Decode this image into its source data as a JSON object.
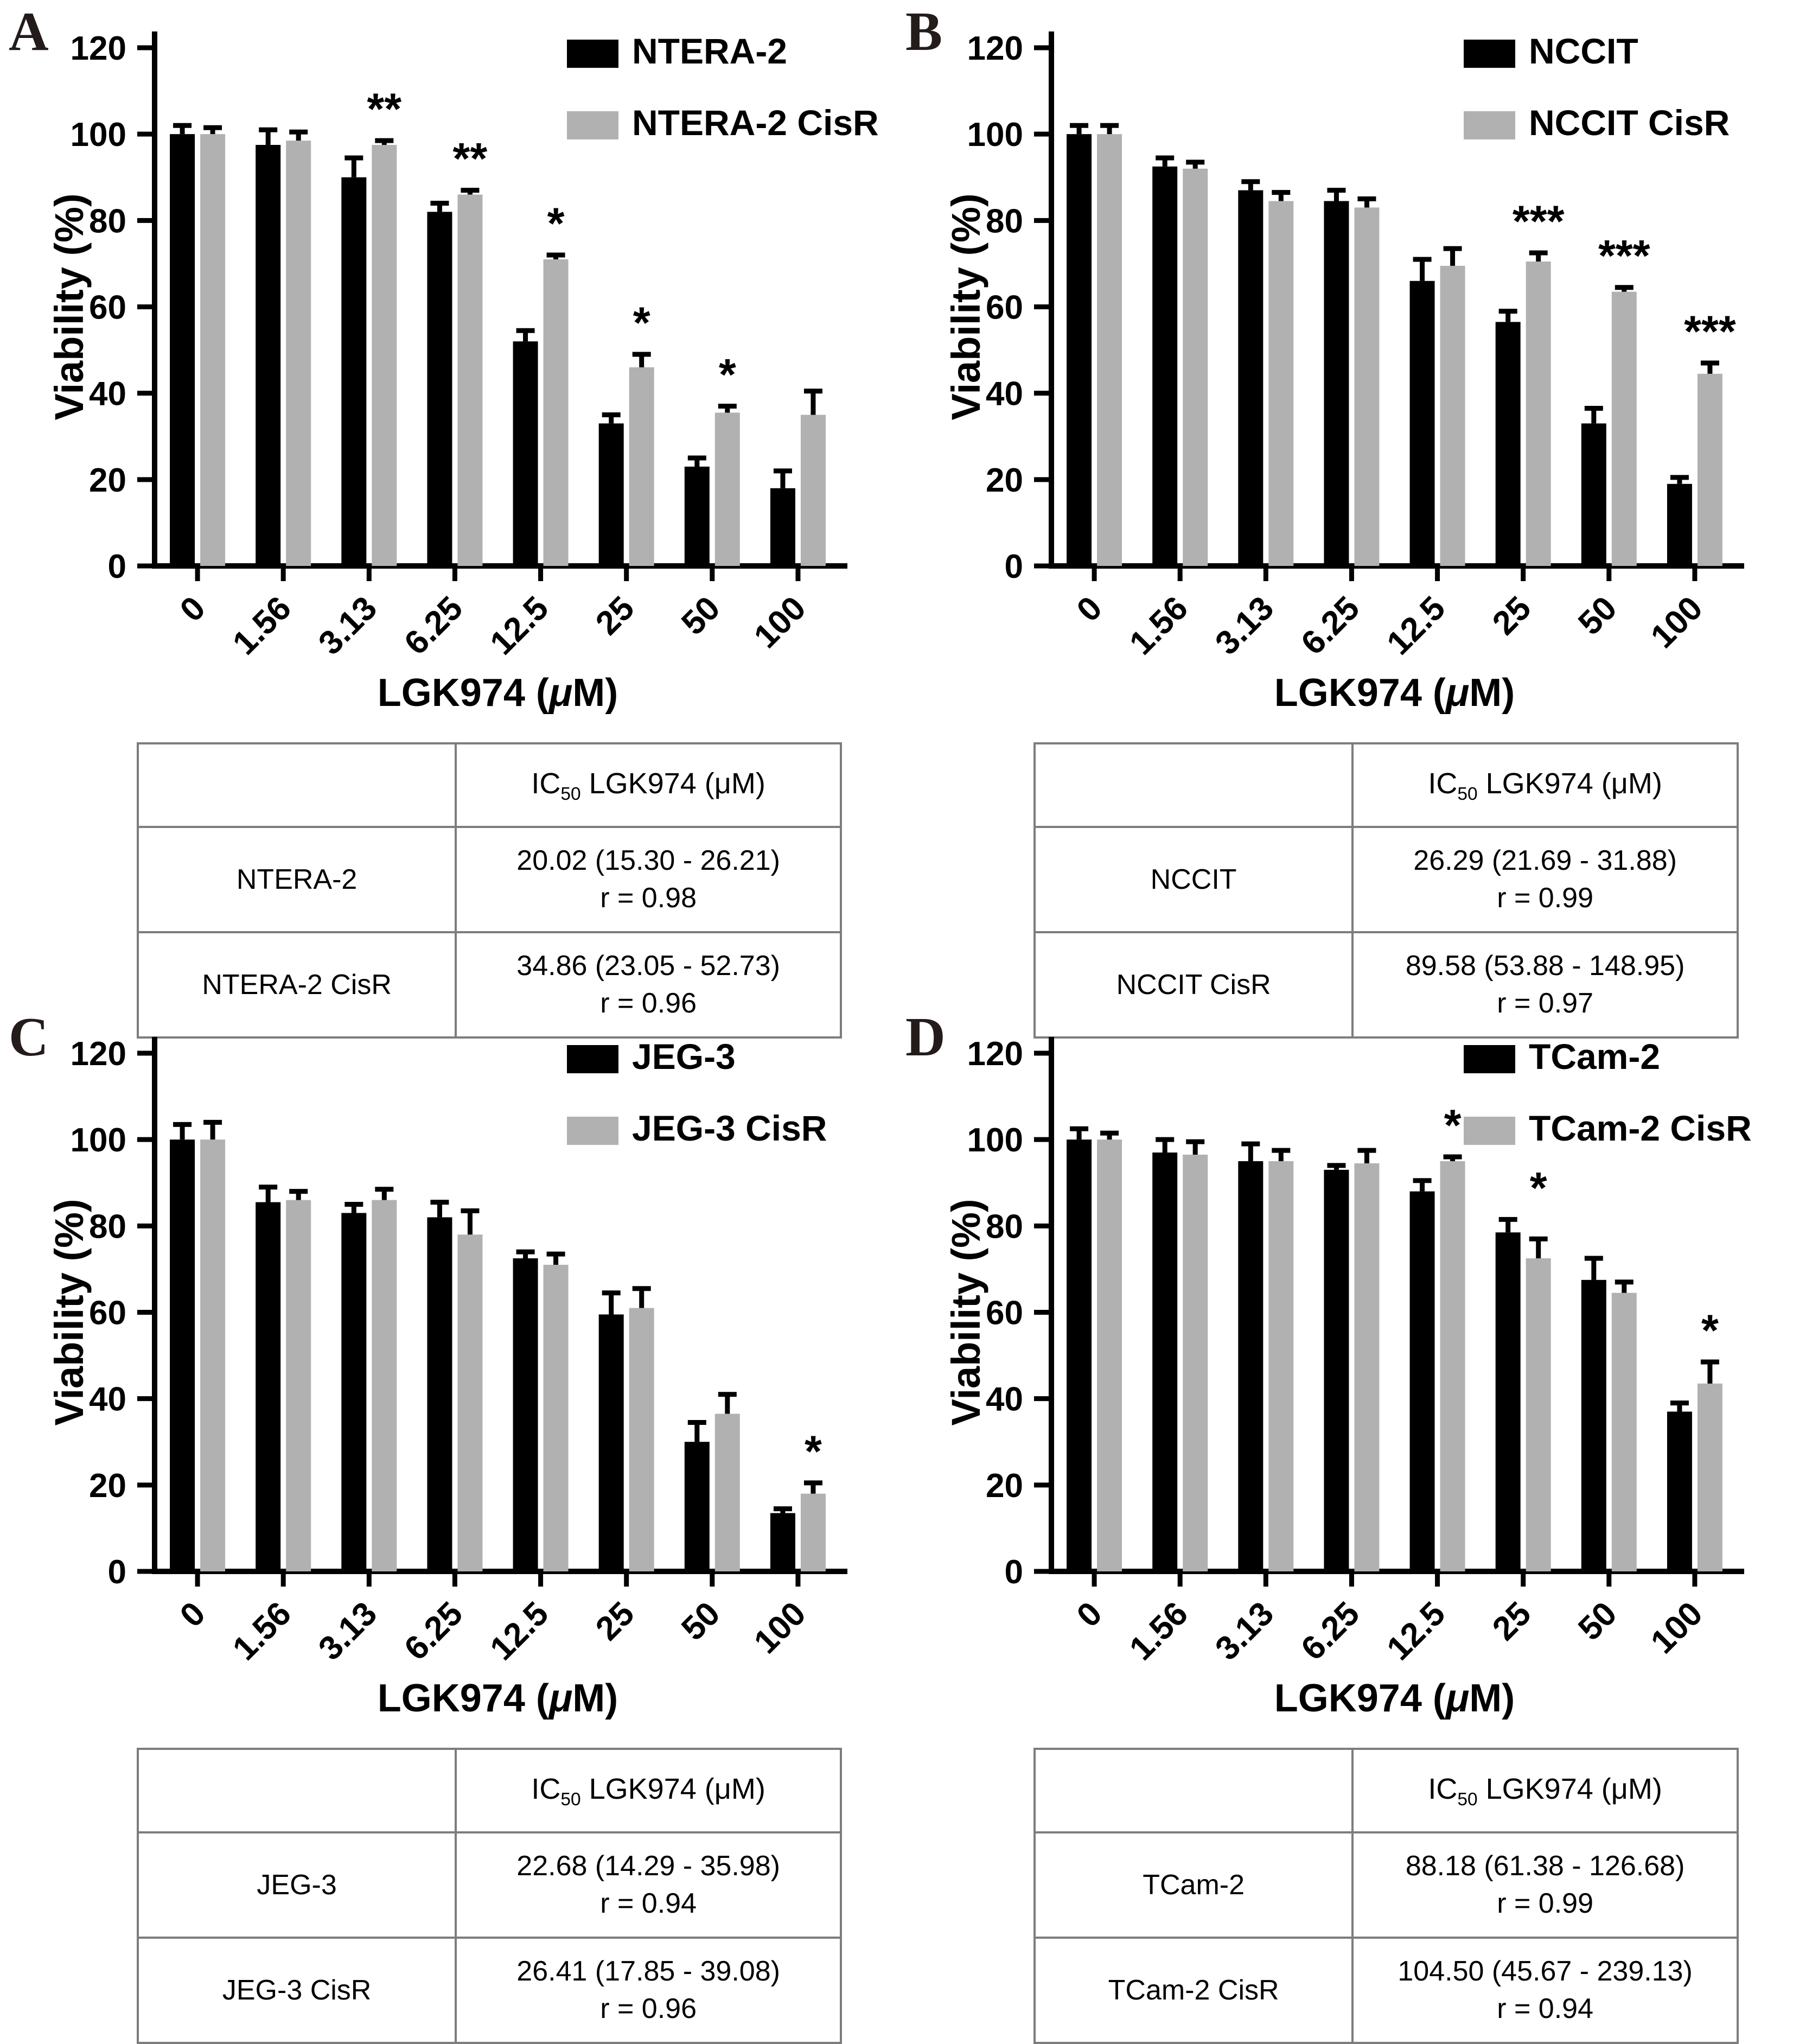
{
  "figure_colors": {
    "bar_black": "#000000",
    "bar_gray": "#b1b1b1",
    "error_bar": "#000000",
    "table_border": "#7d7d7d",
    "panel_letter": "#241b1b"
  },
  "chart_data": [
    {
      "type": "bar",
      "categories": [
        "0",
        "1.56",
        "3.13",
        "6.25",
        "12.5",
        "25",
        "50",
        "100"
      ],
      "xlabel": "LGK974 (μM)",
      "ylabel": "Viability (%)",
      "ylim": [
        0,
        120
      ],
      "yticks": [
        0,
        20,
        40,
        60,
        80,
        100,
        120
      ],
      "grid": false,
      "legend_position": "top-right",
      "series": [
        {
          "name": "NTERA-2",
          "color": "#000000",
          "values": [
            100,
            97.5,
            90,
            82,
            52,
            33,
            23,
            18
          ],
          "errors": [
            2,
            3.5,
            4.5,
            2,
            2.5,
            2,
            2,
            4
          ]
        },
        {
          "name": "NTERA-2 CisR",
          "color": "#b1b1b1",
          "values": [
            100,
            98.5,
            97.5,
            86,
            71,
            46,
            35.5,
            35
          ],
          "errors": [
            1.5,
            2,
            1,
            1,
            1,
            3,
            1.5,
            5.5
          ]
        }
      ],
      "significance": [
        {
          "index": 2,
          "label": "**"
        },
        {
          "index": 3,
          "label": "**"
        },
        {
          "index": 4,
          "label": "*"
        },
        {
          "index": 5,
          "label": "*"
        },
        {
          "index": 6,
          "label": "*"
        }
      ]
    },
    {
      "type": "bar",
      "categories": [
        "0",
        "1.56",
        "3.13",
        "6.25",
        "12.5",
        "25",
        "50",
        "100"
      ],
      "xlabel": "LGK974 (μM)",
      "ylabel": "Viability (%)",
      "ylim": [
        0,
        120
      ],
      "yticks": [
        0,
        20,
        40,
        60,
        80,
        100,
        120
      ],
      "grid": false,
      "legend_position": "top-right",
      "series": [
        {
          "name": "NCCIT",
          "color": "#000000",
          "values": [
            100,
            92.5,
            87,
            84.5,
            66,
            56.5,
            33,
            19
          ],
          "errors": [
            2,
            2,
            2,
            2.5,
            5,
            2.5,
            3.5,
            1.5
          ]
        },
        {
          "name": "NCCIT CisR",
          "color": "#b1b1b1",
          "values": [
            100,
            92,
            84.5,
            83,
            69.5,
            70.5,
            63.5,
            44.5
          ],
          "errors": [
            2,
            1.5,
            2,
            2,
            4,
            2,
            1,
            2.5
          ]
        }
      ],
      "significance": [
        {
          "index": 5,
          "label": "***"
        },
        {
          "index": 6,
          "label": "***"
        },
        {
          "index": 7,
          "label": "***"
        }
      ]
    },
    {
      "type": "bar",
      "categories": [
        "0",
        "1.56",
        "3.13",
        "6.25",
        "12.5",
        "25",
        "50",
        "100"
      ],
      "xlabel": "LGK974 (μM)",
      "ylabel": "Viability (%)",
      "ylim": [
        0,
        120
      ],
      "yticks": [
        0,
        20,
        40,
        60,
        80,
        100,
        120
      ],
      "grid": false,
      "legend_position": "top-right",
      "series": [
        {
          "name": "JEG-3",
          "color": "#000000",
          "values": [
            100,
            85.5,
            83,
            82,
            72.5,
            59.5,
            30,
            13.5
          ],
          "errors": [
            3.5,
            3.5,
            2,
            3.5,
            1.5,
            5,
            4.5,
            1
          ]
        },
        {
          "name": "JEG-3 CisR",
          "color": "#b1b1b1",
          "values": [
            100,
            86,
            86,
            78,
            71,
            61,
            36.5,
            18
          ],
          "errors": [
            4,
            2,
            2.5,
            5.5,
            2.5,
            4.5,
            4.5,
            2.5
          ]
        }
      ],
      "significance": [
        {
          "index": 7,
          "label": "*"
        }
      ]
    },
    {
      "type": "bar",
      "categories": [
        "0",
        "1.56",
        "3.13",
        "6.25",
        "12.5",
        "25",
        "50",
        "100"
      ],
      "xlabel": "LGK974 (μM)",
      "ylabel": "Viability (%)",
      "ylim": [
        0,
        120
      ],
      "yticks": [
        0,
        20,
        40,
        60,
        80,
        100,
        120
      ],
      "grid": false,
      "legend_position": "top-right",
      "series": [
        {
          "name": "TCam-2",
          "color": "#000000",
          "values": [
            100,
            97,
            95,
            93,
            88,
            78.5,
            67.5,
            37
          ],
          "errors": [
            2.5,
            3,
            4,
            1,
            2.5,
            3,
            5,
            2
          ]
        },
        {
          "name": "TCam-2 CisR",
          "color": "#b1b1b1",
          "values": [
            100,
            96.5,
            95,
            94.5,
            95,
            72.5,
            64.5,
            43.5
          ],
          "errors": [
            1.5,
            3,
            2.5,
            3,
            1,
            4.5,
            2.5,
            5
          ]
        }
      ],
      "significance": [
        {
          "index": 4,
          "label": "*"
        },
        {
          "index": 5,
          "label": "*"
        },
        {
          "index": 7,
          "label": "*"
        }
      ]
    }
  ],
  "panels": [
    {
      "label": "A",
      "table": {
        "header": {
          "prefix": "IC",
          "sub": "50",
          "suffix": " LGK974 (μM)"
        },
        "rows": [
          {
            "cell": "NTERA-2",
            "ic50": "20.02 (15.30 - 26.21)",
            "r": "r = 0.98"
          },
          {
            "cell": "NTERA-2 CisR",
            "ic50": "34.86 (23.05 - 52.73)",
            "r": "r = 0.96"
          }
        ]
      }
    },
    {
      "label": "B",
      "table": {
        "header": {
          "prefix": "IC",
          "sub": "50",
          "suffix": " LGK974 (μM)"
        },
        "rows": [
          {
            "cell": "NCCIT",
            "ic50": "26.29 (21.69 - 31.88)",
            "r": "r = 0.99"
          },
          {
            "cell": "NCCIT CisR",
            "ic50": "89.58 (53.88 - 148.95)",
            "r": "r = 0.97"
          }
        ]
      }
    },
    {
      "label": "C",
      "table": {
        "header": {
          "prefix": "IC",
          "sub": "50",
          "suffix": " LGK974 (μM)"
        },
        "rows": [
          {
            "cell": "JEG-3",
            "ic50": "22.68 (14.29 - 35.98)",
            "r": "r = 0.94"
          },
          {
            "cell": "JEG-3 CisR",
            "ic50": "26.41 (17.85 - 39.08)",
            "r": "r = 0.96"
          }
        ]
      }
    },
    {
      "label": "D",
      "table": {
        "header": {
          "prefix": "IC",
          "sub": "50",
          "suffix": " LGK974 (μM)"
        },
        "rows": [
          {
            "cell": "TCam-2",
            "ic50": "88.18 (61.38 - 126.68)",
            "r": "r = 0.99"
          },
          {
            "cell": "TCam-2 CisR",
            "ic50": "104.50 (45.67 - 239.13)",
            "r": "r = 0.94"
          }
        ]
      }
    }
  ]
}
